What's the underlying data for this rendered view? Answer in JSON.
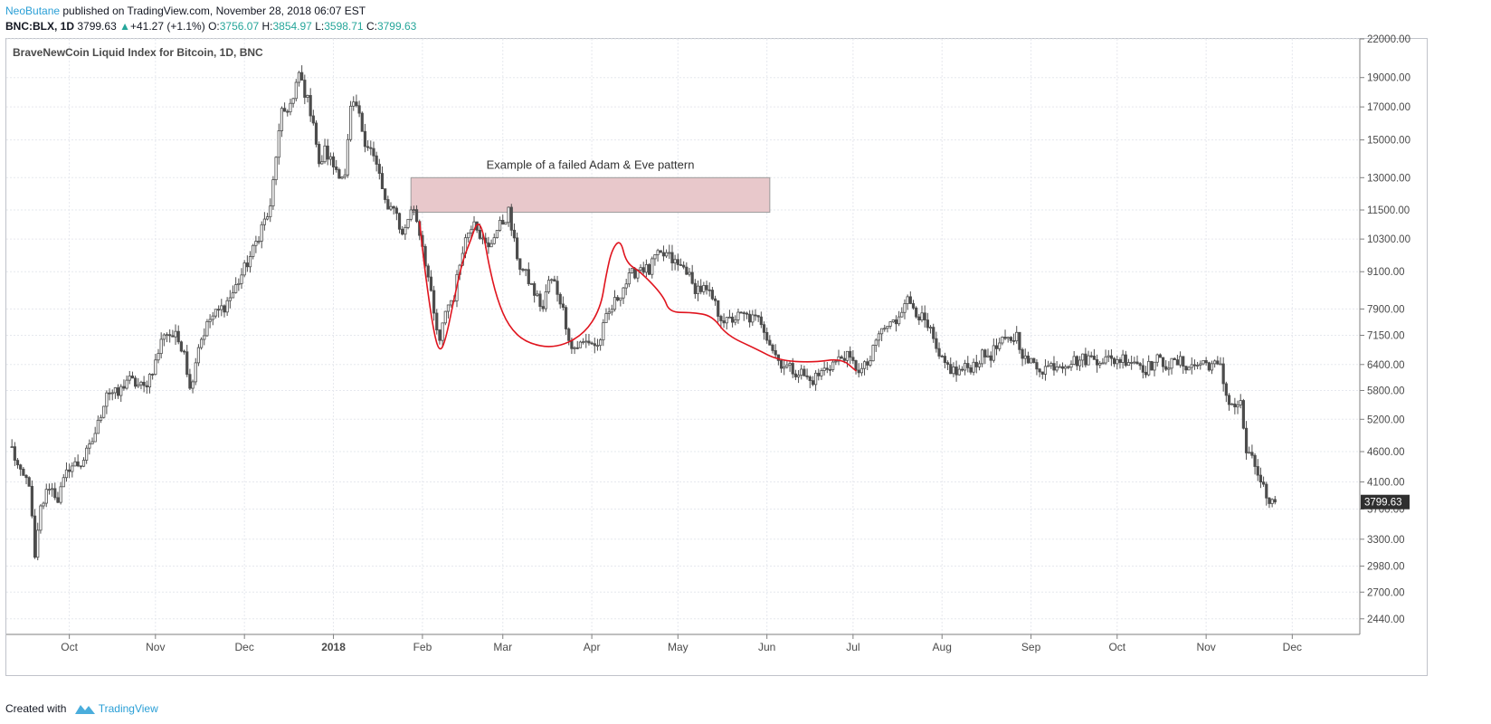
{
  "header": {
    "author": "NeoButane",
    "published": " published on TradingView.com, November 28, 2018 06:07 EST",
    "symbol": "BNC:BLX, 1D",
    "last": "3799.63",
    "change": "+41.27 (+1.1%)",
    "open_label": "O:",
    "open": "3756.07",
    "high_label": "H:",
    "high": "3854.97",
    "low_label": "L:",
    "low": "3598.71",
    "close_label": "C:",
    "close": "3799.63"
  },
  "footer": {
    "created_with": "Created with",
    "brand": "TradingView"
  },
  "colors": {
    "up": "#26a69a",
    "candle": "#4d4d4d",
    "drawing": "#e0141e",
    "zone_fill": "#e8c8cb",
    "accent": "#2a9fd6"
  },
  "chart_data": {
    "type": "candlestick",
    "title": "BraveNewCoin Liquid Index for Bitcoin, 1D, BNC",
    "scale": "log",
    "ylim": [
      2300,
      22000
    ],
    "y_ticks": [
      22000,
      19000,
      17000,
      15000,
      13000,
      11500,
      10300,
      9100,
      7900,
      7150,
      6400,
      5800,
      5200,
      4600,
      4100,
      3700,
      3300,
      2980,
      2700,
      2440
    ],
    "y_tick_labels": [
      "22000.00",
      "19000.00",
      "17000.00",
      "15000.00",
      "13000.00",
      "11500.00",
      "10300.00",
      "9100.00",
      "7900.00",
      "7150.00",
      "6400.00",
      "5800.00",
      "5200.00",
      "4600.00",
      "4100.00",
      "3700.00",
      "3300.00",
      "2980.00",
      "2700.00",
      "2440.00"
    ],
    "x_ticks": [
      "Oct",
      "Nov",
      "Dec",
      "2018",
      "Feb",
      "Mar",
      "Apr",
      "May",
      "Jun",
      "Jul",
      "Aug",
      "Sep",
      "Oct",
      "Nov",
      "Dec"
    ],
    "x_tick_days": [
      21,
      51,
      82,
      113,
      144,
      172,
      203,
      233,
      264,
      294,
      325,
      356,
      386,
      417,
      447
    ],
    "last_price": 3799.63,
    "annotation": {
      "text": "Example of a failed Adam & Eve pattern",
      "zone": {
        "day_start": 140,
        "day_end": 265,
        "price_low": 11400,
        "price_high": 13000
      }
    },
    "drawing_path": [
      [
        143,
        11000
      ],
      [
        145,
        9000
      ],
      [
        148,
        7200
      ],
      [
        150,
        6700
      ],
      [
        152,
        7000
      ],
      [
        155,
        8200
      ],
      [
        158,
        9500
      ],
      [
        161,
        10300
      ],
      [
        163,
        11000
      ],
      [
        165,
        10700
      ],
      [
        167,
        9400
      ],
      [
        170,
        8200
      ],
      [
        174,
        7400
      ],
      [
        180,
        6950
      ],
      [
        190,
        6800
      ],
      [
        200,
        7150
      ],
      [
        206,
        7900
      ],
      [
        208,
        9000
      ],
      [
        210,
        9900
      ],
      [
        213,
        10300
      ],
      [
        215,
        9400
      ],
      [
        220,
        9100
      ],
      [
        228,
        8300
      ],
      [
        230,
        7800
      ],
      [
        238,
        7800
      ],
      [
        245,
        7700
      ],
      [
        250,
        7150
      ],
      [
        260,
        6800
      ],
      [
        268,
        6500
      ],
      [
        280,
        6450
      ],
      [
        290,
        6550
      ],
      [
        295,
        6250
      ]
    ],
    "anchors": [
      [
        1,
        4650
      ],
      [
        4,
        4200
      ],
      [
        7,
        4100
      ],
      [
        9,
        3050
      ],
      [
        11,
        3700
      ],
      [
        14,
        4050
      ],
      [
        17,
        3850
      ],
      [
        21,
        4350
      ],
      [
        25,
        4400
      ],
      [
        28,
        4650
      ],
      [
        31,
        5100
      ],
      [
        34,
        5800
      ],
      [
        38,
        5700
      ],
      [
        41,
        6050
      ],
      [
        44,
        5950
      ],
      [
        47,
        5850
      ],
      [
        51,
        6450
      ],
      [
        54,
        7250
      ],
      [
        58,
        7100
      ],
      [
        61,
        6800
      ],
      [
        63,
        5800
      ],
      [
        66,
        6900
      ],
      [
        70,
        7600
      ],
      [
        75,
        8000
      ],
      [
        78,
        8400
      ],
      [
        82,
        9200
      ],
      [
        85,
        9850
      ],
      [
        88,
        10800
      ],
      [
        91,
        11500
      ],
      [
        93,
        14200
      ],
      [
        95,
        16500
      ],
      [
        99,
        17400
      ],
      [
        101,
        19300
      ],
      [
        103,
        18000
      ],
      [
        106,
        16200
      ],
      [
        108,
        13500
      ],
      [
        110,
        14400
      ],
      [
        113,
        13600
      ],
      [
        117,
        13000
      ],
      [
        119,
        16800
      ],
      [
        121,
        17000
      ],
      [
        124,
        15000
      ],
      [
        126,
        14500
      ],
      [
        129,
        13100
      ],
      [
        132,
        11300
      ],
      [
        134,
        11800
      ],
      [
        137,
        10400
      ],
      [
        139,
        11200
      ],
      [
        141,
        11600
      ],
      [
        144,
        10100
      ],
      [
        146,
        8900
      ],
      [
        148,
        7700
      ],
      [
        150,
        6900
      ],
      [
        152,
        7900
      ],
      [
        155,
        8300
      ],
      [
        158,
        10000
      ],
      [
        160,
        10600
      ],
      [
        162,
        11200
      ],
      [
        165,
        10200
      ],
      [
        167,
        9900
      ],
      [
        169,
        10500
      ],
      [
        172,
        11000
      ],
      [
        174,
        11400
      ],
      [
        176,
        10100
      ],
      [
        178,
        9300
      ],
      [
        181,
        8800
      ],
      [
        183,
        8400
      ],
      [
        186,
        7900
      ],
      [
        188,
        8800
      ],
      [
        190,
        8700
      ],
      [
        192,
        8200
      ],
      [
        194,
        7500
      ],
      [
        196,
        6800
      ],
      [
        199,
        6900
      ],
      [
        202,
        7000
      ],
      [
        205,
        6850
      ],
      [
        208,
        7600
      ],
      [
        211,
        8100
      ],
      [
        214,
        8600
      ],
      [
        217,
        9000
      ],
      [
        220,
        9300
      ],
      [
        223,
        9100
      ],
      [
        225,
        9600
      ],
      [
        229,
        9700
      ],
      [
        233,
        9300
      ],
      [
        236,
        9200
      ],
      [
        238,
        8600
      ],
      [
        242,
        8500
      ],
      [
        245,
        8200
      ],
      [
        247,
        7800
      ],
      [
        250,
        7500
      ],
      [
        253,
        7650
      ],
      [
        256,
        7700
      ],
      [
        259,
        7600
      ],
      [
        262,
        7550
      ],
      [
        266,
        6800
      ],
      [
        268,
        6500
      ],
      [
        272,
        6300
      ],
      [
        276,
        6200
      ],
      [
        279,
        6000
      ],
      [
        282,
        6150
      ],
      [
        286,
        6400
      ],
      [
        289,
        6500
      ],
      [
        291,
        6650
      ],
      [
        294,
        6400
      ],
      [
        297,
        6250
      ],
      [
        300,
        6500
      ],
      [
        303,
        7200
      ],
      [
        306,
        7400
      ],
      [
        309,
        7550
      ],
      [
        312,
        8200
      ],
      [
        315,
        8000
      ],
      [
        318,
        7600
      ],
      [
        321,
        7200
      ],
      [
        324,
        6500
      ],
      [
        327,
        6350
      ],
      [
        330,
        6200
      ],
      [
        333,
        6300
      ],
      [
        336,
        6400
      ],
      [
        339,
        6600
      ],
      [
        342,
        6650
      ],
      [
        345,
        6900
      ],
      [
        348,
        7000
      ],
      [
        351,
        7150
      ],
      [
        354,
        6500
      ],
      [
        357,
        6400
      ],
      [
        360,
        6300
      ],
      [
        364,
        6400
      ],
      [
        368,
        6450
      ],
      [
        372,
        6500
      ],
      [
        376,
        6550
      ],
      [
        380,
        6550
      ],
      [
        384,
        6500
      ],
      [
        388,
        6550
      ],
      [
        392,
        6500
      ],
      [
        396,
        6300
      ],
      [
        400,
        6500
      ],
      [
        404,
        6400
      ],
      [
        408,
        6450
      ],
      [
        412,
        6350
      ],
      [
        416,
        6450
      ],
      [
        419,
        6400
      ],
      [
        422,
        6300
      ],
      [
        424,
        5700
      ],
      [
        426,
        5500
      ],
      [
        429,
        5500
      ],
      [
        431,
        4600
      ],
      [
        434,
        4350
      ],
      [
        437,
        4000
      ],
      [
        439,
        3700
      ],
      [
        441,
        3800
      ]
    ]
  }
}
